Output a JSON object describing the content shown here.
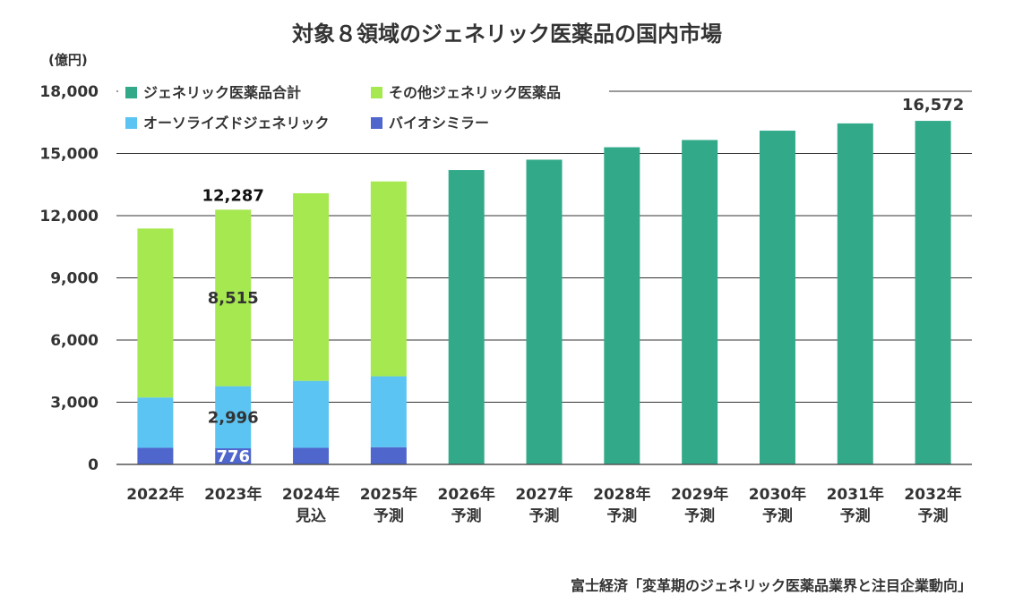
{
  "chart_data": {
    "type": "bar",
    "stacked": true,
    "title": "対象８領域のジェネリック医薬品の国内市場",
    "unit_label": "(億円)",
    "source": "富士経済「変革期のジェネリック医薬品業界と注目企業動向」",
    "categories": [
      [
        "2022年"
      ],
      [
        "2023年"
      ],
      [
        "2024年",
        "見込"
      ],
      [
        "2025年",
        "予測"
      ],
      [
        "2026年",
        "予測"
      ],
      [
        "2027年",
        "予測"
      ],
      [
        "2028年",
        "予測"
      ],
      [
        "2029年",
        "予測"
      ],
      [
        "2030年",
        "予測"
      ],
      [
        "2031年",
        "予測"
      ],
      [
        "2032年",
        "予測"
      ]
    ],
    "yticks": [
      "0",
      "3,000",
      "6,000",
      "9,000",
      "12,000",
      "15,000",
      "18,000"
    ],
    "ylim": [
      0,
      18000
    ],
    "grid": true,
    "legend_position": "top-left",
    "series": [
      {
        "name": "バイオシミラー",
        "color": "#4f66cc",
        "values": [
          800,
          776,
          800,
          830,
          null,
          null,
          null,
          null,
          null,
          null,
          null
        ]
      },
      {
        "name": "オーソライズドジェネリック",
        "color": "#5bc4f2",
        "values": [
          2430,
          2996,
          3230,
          3420,
          null,
          null,
          null,
          null,
          null,
          null,
          null
        ]
      },
      {
        "name": "その他ジェネリック医薬品",
        "color": "#a6e84f",
        "values": [
          8150,
          8515,
          9050,
          9400,
          null,
          null,
          null,
          null,
          null,
          null,
          null
        ]
      },
      {
        "name": "ジェネリック医薬品合計",
        "color": "#32aa8a",
        "values": [
          null,
          null,
          null,
          null,
          14200,
          14700,
          15300,
          15650,
          16100,
          16450,
          16572
        ]
      }
    ],
    "legend": [
      {
        "name": "ジェネリック医薬品合計",
        "color": "#32aa8a"
      },
      {
        "name": "その他ジェネリック医薬品",
        "color": "#a6e84f"
      },
      {
        "name": "オーソライズドジェネリック",
        "color": "#5bc4f2"
      },
      {
        "name": "バイオシミラー",
        "color": "#4f66cc"
      }
    ],
    "data_labels": [
      {
        "category_index": 1,
        "series": "total",
        "value": 12287,
        "text": "12,287"
      },
      {
        "category_index": 1,
        "series": "その他ジェネリック医薬品",
        "value": 8515,
        "text": "8,515"
      },
      {
        "category_index": 1,
        "series": "オーソライズドジェネリック",
        "value": 2996,
        "text": "2,996"
      },
      {
        "category_index": 1,
        "series": "バイオシミラー",
        "value": 776,
        "text": "776"
      },
      {
        "category_index": 10,
        "series": "ジェネリック医薬品合計",
        "value": 16572,
        "text": "16,572"
      }
    ]
  }
}
